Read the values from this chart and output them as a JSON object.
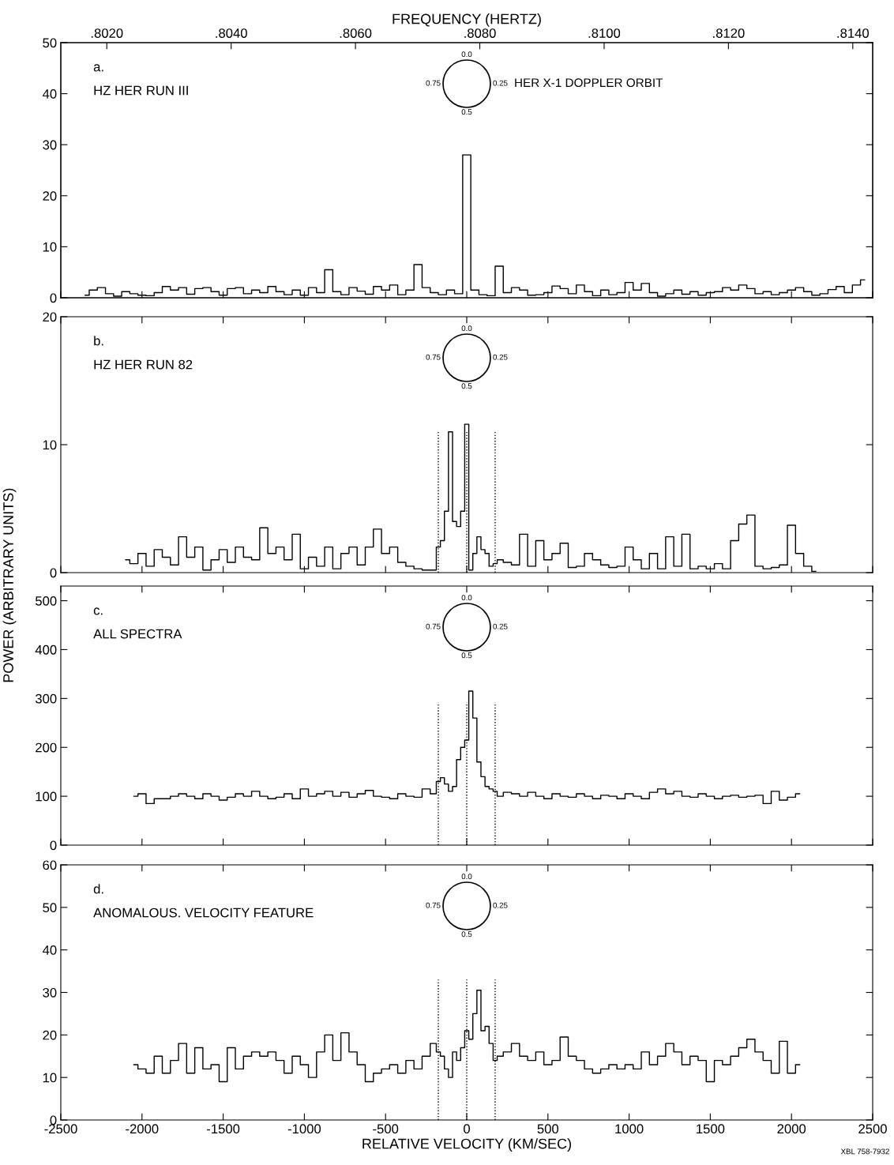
{
  "chart_data": [
    {
      "type": "step",
      "x2label": "FREQUENCY (HERTZ)",
      "xlim": [
        -2500,
        2500
      ],
      "xticks": [
        -2500,
        -2000,
        -1500,
        -1000,
        -500,
        0,
        500,
        1000,
        1500,
        2000,
        2500
      ],
      "x2lim": [
        0.80126,
        0.81432
      ],
      "x2ticks": [
        {
          "value": 0.802,
          "label": ".8020"
        },
        {
          "value": 0.804,
          "label": ".8040"
        },
        {
          "value": 0.806,
          "label": ".8060"
        },
        {
          "value": 0.808,
          "label": ".8080"
        },
        {
          "value": 0.81,
          "label": ".8100"
        },
        {
          "value": 0.812,
          "label": ".8120"
        },
        {
          "value": 0.814,
          "label": ".8140"
        }
      ],
      "ylim": [
        0,
        50
      ],
      "yticks": [
        0,
        10,
        20,
        30,
        40,
        50
      ],
      "tick_labels": "y",
      "grid": false,
      "legend": false,
      "annotations": [
        "a.",
        "HZ HER RUN III",
        "0.0",
        "0.25",
        "0.5",
        "0.75",
        "HER X-1 DOPPLER ORBIT"
      ],
      "series": [
        {
          "color": "#000000",
          "x": [
            -2350,
            -2300,
            -2250,
            -2200,
            -2150,
            -2100,
            -2050,
            -2000,
            -1950,
            -1900,
            -1850,
            -1800,
            -1750,
            -1700,
            -1650,
            -1600,
            -1550,
            -1500,
            -1450,
            -1400,
            -1350,
            -1300,
            -1250,
            -1200,
            -1150,
            -1100,
            -1050,
            -1000,
            -950,
            -900,
            -850,
            -800,
            -750,
            -700,
            -650,
            -600,
            -550,
            -500,
            -450,
            -400,
            -350,
            -300,
            -250,
            -200,
            -150,
            -100,
            -50,
            0,
            50,
            100,
            150,
            200,
            250,
            300,
            350,
            400,
            450,
            500,
            550,
            600,
            650,
            700,
            750,
            800,
            850,
            900,
            950,
            1000,
            1050,
            1100,
            1150,
            1200,
            1250,
            1300,
            1350,
            1400,
            1450,
            1500,
            1550,
            1600,
            1650,
            1700,
            1750,
            1800,
            1850,
            1900,
            1950,
            2000,
            2050,
            2100,
            2150,
            2200,
            2250,
            2300,
            2350,
            2400,
            2450
          ],
          "values": [
            0.5,
            1.5,
            2.0,
            0.8,
            0.3,
            1.2,
            0.8,
            0.5,
            0.4,
            1.0,
            2.2,
            1.5,
            2.0,
            0.7,
            1.8,
            2.0,
            1.2,
            0.5,
            1.8,
            2.0,
            0.8,
            1.5,
            1.0,
            2.2,
            1.2,
            0.6,
            1.5,
            0.5,
            2.0,
            1.0,
            5.5,
            1.2,
            0.6,
            2.0,
            1.3,
            0.7,
            2.2,
            1.5,
            2.5,
            0.6,
            1.5,
            6.5,
            2.0,
            1.0,
            0.6,
            1.5,
            0.8,
            28,
            1.5,
            0.6,
            0.4,
            6.2,
            1.0,
            2.0,
            1.5,
            0.5,
            0.6,
            1.0,
            2.3,
            1.8,
            0.8,
            2.5,
            1.2,
            0.4,
            1.5,
            0.6,
            1.0,
            3.0,
            1.5,
            2.8,
            1.0,
            0.3,
            0.8,
            1.5,
            0.7,
            1.2,
            0.5,
            1.0,
            1.2,
            2.0,
            1.5,
            2.5,
            1.8,
            0.8,
            1.2,
            0.6,
            1.0,
            1.5,
            2.0,
            1.2,
            0.5,
            0.8,
            1.6,
            2.2,
            1.0,
            2.5,
            3.5
          ]
        }
      ]
    },
    {
      "type": "step",
      "xlim": [
        -2500,
        2500
      ],
      "xticks": [
        -2500,
        -2000,
        -1500,
        -1000,
        -500,
        0,
        500,
        1000,
        1500,
        2000,
        2500
      ],
      "ylim": [
        0,
        20
      ],
      "yticks": [
        0,
        10,
        20
      ],
      "tick_labels": "y",
      "grid": false,
      "legend": false,
      "ylabel": "POWER (ARBITRARY UNITS)",
      "annotations": [
        "b.",
        "HZ HER RUN 82",
        "0.0",
        "0.25",
        "0.5",
        "0.75"
      ],
      "ref_lines": [
        {
          "axis": "x",
          "value": -175,
          "color": "#000000",
          "line_style": "dotted"
        },
        {
          "axis": "x",
          "value": 0,
          "color": "#000000",
          "line_style": "dotted"
        },
        {
          "axis": "x",
          "value": 175,
          "color": "#000000",
          "line_style": "dotted"
        }
      ],
      "series": [
        {
          "color": "#000000",
          "x": [
            -2100,
            -2050,
            -2000,
            -1950,
            -1900,
            -1850,
            -1800,
            -1750,
            -1700,
            -1650,
            -1600,
            -1550,
            -1500,
            -1450,
            -1400,
            -1350,
            -1300,
            -1250,
            -1200,
            -1150,
            -1100,
            -1050,
            -1000,
            -950,
            -900,
            -850,
            -800,
            -750,
            -700,
            -650,
            -600,
            -550,
            -500,
            -450,
            -400,
            -350,
            -300,
            -250,
            -200,
            -175,
            -150,
            -125,
            -100,
            -75,
            -50,
            -25,
            0,
            25,
            50,
            75,
            100,
            125,
            150,
            175,
            200,
            250,
            300,
            350,
            400,
            450,
            500,
            550,
            600,
            650,
            700,
            750,
            800,
            850,
            900,
            950,
            1000,
            1050,
            1100,
            1150,
            1200,
            1250,
            1300,
            1350,
            1400,
            1450,
            1500,
            1550,
            1600,
            1650,
            1700,
            1750,
            1800,
            1850,
            1900,
            1950,
            2000,
            2050,
            2100,
            2150
          ],
          "values": [
            1.0,
            0.7,
            1.5,
            0.5,
            1.8,
            1.2,
            0.6,
            2.8,
            1.2,
            2.0,
            0.2,
            1.0,
            1.8,
            0.8,
            2.0,
            1.2,
            1.0,
            3.5,
            1.5,
            2.0,
            1.0,
            3.0,
            0.3,
            1.2,
            0.5,
            2.0,
            0.3,
            1.5,
            2.0,
            0.6,
            2.0,
            3.4,
            1.5,
            2.0,
            0.8,
            0.5,
            0.3,
            0.2,
            0.2,
            2.0,
            2.5,
            4.8,
            11.0,
            4.0,
            3.6,
            4.8,
            11.6,
            0.2,
            1.5,
            2.8,
            1.8,
            1.5,
            0.5,
            0.7,
            1.0,
            0.8,
            0.6,
            3.0,
            0.5,
            2.5,
            1.0,
            1.5,
            2.3,
            0.4,
            0.5,
            1.5,
            1.0,
            0.6,
            0.4,
            0.5,
            2.0,
            1.0,
            0.3,
            1.5,
            0.3,
            2.8,
            0.5,
            3.0,
            0.3,
            0.5,
            0.3,
            0.7,
            0.3,
            2.5,
            3.8,
            4.5,
            0.5,
            0.3,
            0.4,
            0.6,
            3.7,
            1.5,
            0.5,
            0.1
          ]
        }
      ]
    },
    {
      "type": "step",
      "xlim": [
        -2500,
        2500
      ],
      "xticks": [
        -2500,
        -2000,
        -1500,
        -1000,
        -500,
        0,
        500,
        1000,
        1500,
        2000,
        2500
      ],
      "ylim": [
        0,
        530
      ],
      "yticks": [
        0,
        100,
        200,
        300,
        400,
        500
      ],
      "tick_labels": "y",
      "grid": false,
      "legend": false,
      "annotations": [
        "c.",
        "ALL SPECTRA",
        "0.0",
        "0.25",
        "0.5",
        "0.75"
      ],
      "ref_lines": [
        {
          "axis": "x",
          "value": -175,
          "color": "#000000",
          "line_style": "dotted"
        },
        {
          "axis": "x",
          "value": 0,
          "color": "#000000",
          "line_style": "dotted"
        },
        {
          "axis": "x",
          "value": 175,
          "color": "#000000",
          "line_style": "dotted"
        }
      ],
      "series": [
        {
          "color": "#000000",
          "x": [
            -2050,
            -2000,
            -1950,
            -1900,
            -1850,
            -1800,
            -1750,
            -1700,
            -1650,
            -1600,
            -1550,
            -1500,
            -1450,
            -1400,
            -1350,
            -1300,
            -1250,
            -1200,
            -1150,
            -1100,
            -1050,
            -1000,
            -950,
            -900,
            -850,
            -800,
            -750,
            -700,
            -650,
            -600,
            -550,
            -500,
            -450,
            -400,
            -350,
            -300,
            -250,
            -200,
            -175,
            -150,
            -125,
            -100,
            -75,
            -50,
            -25,
            0,
            25,
            50,
            75,
            100,
            125,
            150,
            175,
            200,
            250,
            300,
            350,
            400,
            450,
            500,
            550,
            600,
            650,
            700,
            750,
            800,
            850,
            900,
            950,
            1000,
            1050,
            1100,
            1150,
            1200,
            1250,
            1300,
            1350,
            1400,
            1450,
            1500,
            1550,
            1600,
            1650,
            1700,
            1750,
            1800,
            1850,
            1900,
            1950,
            2000,
            2050
          ],
          "values": [
            100,
            105,
            85,
            95,
            95,
            100,
            105,
            100,
            95,
            105,
            100,
            92,
            98,
            105,
            100,
            110,
            100,
            95,
            98,
            105,
            95,
            115,
            100,
            105,
            110,
            100,
            108,
            98,
            105,
            112,
            100,
            98,
            95,
            105,
            100,
            98,
            115,
            105,
            130,
            138,
            125,
            110,
            120,
            175,
            200,
            215,
            315,
            260,
            170,
            140,
            120,
            115,
            110,
            100,
            108,
            105,
            100,
            108,
            100,
            95,
            105,
            100,
            98,
            105,
            100,
            95,
            102,
            100,
            95,
            105,
            100,
            95,
            108,
            115,
            105,
            110,
            100,
            98,
            105,
            100,
            95,
            100,
            102,
            98,
            100,
            102,
            85,
            110,
            92,
            98,
            105
          ]
        }
      ]
    },
    {
      "type": "step",
      "xlabel": "RELATIVE VELOCITY (KM/SEC)",
      "xlim": [
        -2500,
        2500
      ],
      "xticks": [
        -2500,
        -2000,
        -1500,
        -1000,
        -500,
        0,
        500,
        1000,
        1500,
        2000,
        2500
      ],
      "ylim": [
        0,
        60
      ],
      "yticks": [
        0,
        10,
        20,
        30,
        40,
        50,
        60
      ],
      "grid": false,
      "legend": false,
      "annotations": [
        "d.",
        "ANOMALOUS. VELOCITY FEATURE",
        "0.0",
        "0.25",
        "0.5",
        "0.75",
        "XBL 758-7932"
      ],
      "ref_lines": [
        {
          "axis": "x",
          "value": -175,
          "color": "#000000",
          "line_style": "dotted"
        },
        {
          "axis": "x",
          "value": 0,
          "color": "#000000",
          "line_style": "dotted"
        },
        {
          "axis": "x",
          "value": 175,
          "color": "#000000",
          "line_style": "dotted"
        }
      ],
      "series": [
        {
          "color": "#000000",
          "x": [
            -2050,
            -2000,
            -1950,
            -1900,
            -1850,
            -1800,
            -1750,
            -1700,
            -1650,
            -1600,
            -1550,
            -1500,
            -1450,
            -1400,
            -1350,
            -1300,
            -1250,
            -1200,
            -1150,
            -1100,
            -1050,
            -1000,
            -950,
            -900,
            -850,
            -800,
            -750,
            -700,
            -650,
            -600,
            -550,
            -500,
            -450,
            -400,
            -350,
            -300,
            -250,
            -200,
            -175,
            -150,
            -125,
            -100,
            -75,
            -50,
            -25,
            0,
            25,
            50,
            75,
            100,
            125,
            150,
            175,
            200,
            250,
            300,
            350,
            400,
            450,
            500,
            550,
            600,
            650,
            700,
            750,
            800,
            850,
            900,
            950,
            1000,
            1050,
            1100,
            1150,
            1200,
            1250,
            1300,
            1350,
            1400,
            1450,
            1500,
            1550,
            1600,
            1650,
            1700,
            1750,
            1800,
            1850,
            1900,
            1950,
            2000,
            2050
          ],
          "values": [
            13,
            12,
            11,
            15,
            11,
            14,
            18,
            11,
            17,
            12,
            13,
            9,
            17,
            12,
            15,
            16,
            15,
            16,
            14,
            11,
            15,
            13,
            10,
            16,
            20,
            14,
            20.5,
            16,
            13,
            9,
            11,
            12,
            13,
            11,
            14,
            12,
            15,
            18,
            16,
            15,
            12,
            10,
            16,
            14,
            17,
            21,
            19,
            25,
            30.5,
            21,
            22,
            18,
            14,
            15,
            16,
            18,
            15,
            14,
            16,
            13,
            14,
            19.5,
            15,
            14,
            12,
            11,
            12,
            13,
            12,
            13,
            12,
            16,
            13,
            15,
            18,
            16,
            13,
            15,
            14,
            9,
            14,
            13,
            15,
            17,
            19,
            16,
            14,
            11,
            18.5,
            11,
            13
          ]
        }
      ]
    }
  ]
}
